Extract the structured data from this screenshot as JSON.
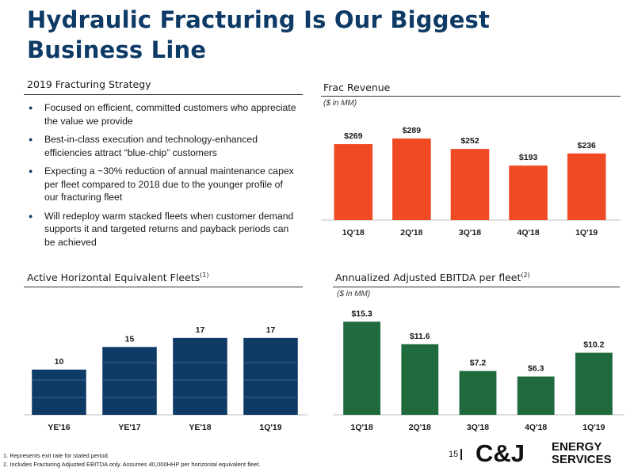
{
  "slide": {
    "title_line1": "Hydraulic Fracturing Is Our Biggest",
    "title_line2": "Business Line",
    "page_number": "15"
  },
  "strategy": {
    "heading": "2019 Fracturing Strategy",
    "bullets": [
      "Focused on efficient, committed customers who appreciate the value we provide",
      "Best-in-class execution and technology-enhanced efficiencies attract “blue-chip” customers",
      "Expecting a ~30% reduction of annual maintenance capex per fleet compared to 2018 due to the younger profile of our fracturing fleet",
      "Will redeploy warm stacked fleets when customer demand supports it and targeted returns and payback periods can be achieved"
    ]
  },
  "footnotes": [
    "1.  Represents exit rate for stated period.",
    "2.  Includes Fracturing Adjusted EBITDA only.  Assumes 40,000HHP per horizontal equivalent fleet."
  ],
  "logo": {
    "text_main": "C&J",
    "text_line1": "ENERGY",
    "text_line2": "SERVICES"
  },
  "chart_data": [
    {
      "type": "bar",
      "title": "Frac Revenue",
      "subtitle": "($ in MM)",
      "categories": [
        "1Q'18",
        "2Q'18",
        "3Q'18",
        "4Q'18",
        "1Q'19"
      ],
      "values": [
        269,
        289,
        252,
        193,
        236
      ],
      "data_labels": [
        "$269",
        "$289",
        "$252",
        "$193",
        "$236"
      ],
      "ylim": [
        0,
        300
      ],
      "color": "#ef4a23"
    },
    {
      "type": "bar",
      "title": "Active Horizontal Equivalent Fleets",
      "title_sup": "(1)",
      "categories": [
        "YE'16",
        "YE'17",
        "YE'18",
        "1Q'19"
      ],
      "values": [
        10,
        15,
        17,
        17
      ],
      "data_labels": [
        "10",
        "15",
        "17",
        "17"
      ],
      "ylim": [
        0,
        17.5
      ],
      "color": "#0e3a66"
    },
    {
      "type": "bar",
      "title": "Annualized Adjusted EBITDA per fleet",
      "title_sup": "(2)",
      "subtitle": "($ in MM)",
      "categories": [
        "1Q'18",
        "2Q'18",
        "3Q'18",
        "4Q'18",
        "1Q'19"
      ],
      "values": [
        15.3,
        11.6,
        7.2,
        6.3,
        10.2
      ],
      "data_labels": [
        "$15.3",
        "$11.6",
        "$7.2",
        "$6.3",
        "$10.2"
      ],
      "ylim": [
        0,
        16
      ],
      "color": "#1f6b3d"
    }
  ]
}
